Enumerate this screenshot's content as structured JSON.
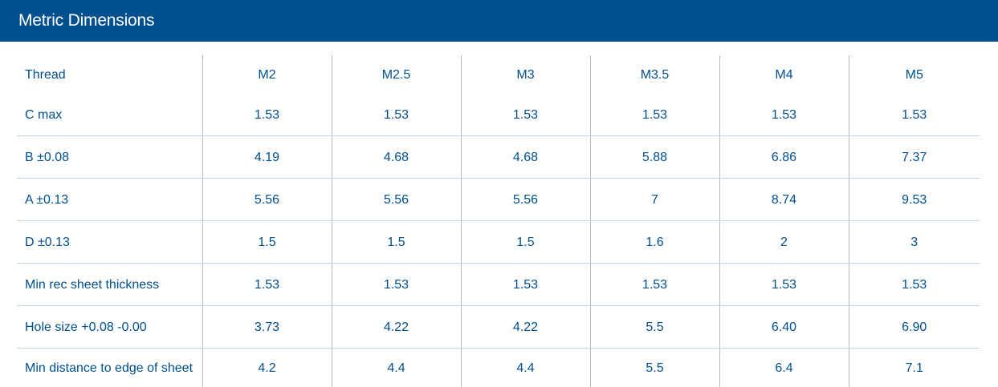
{
  "header": {
    "title": "Metric Dimensions"
  },
  "colors": {
    "header_background": "#004f8f",
    "text": "#004f8f",
    "row_divider": "#c3d3e4",
    "column_divider": "#b8b8b8"
  },
  "table": {
    "row_header_label": "Thread",
    "columns": [
      "M2",
      "M2.5",
      "M3",
      "M3.5",
      "M4",
      "M5"
    ],
    "rows": [
      {
        "label": "C max",
        "values": [
          "1.53",
          "1.53",
          "1.53",
          "1.53",
          "1.53",
          "1.53"
        ]
      },
      {
        "label": "B ±0.08",
        "values": [
          "4.19",
          "4.68",
          "4.68",
          "5.88",
          "6.86",
          "7.37"
        ]
      },
      {
        "label": "A ±0.13",
        "values": [
          "5.56",
          "5.56",
          "5.56",
          "7",
          "8.74",
          "9.53"
        ]
      },
      {
        "label": "D ±0.13",
        "values": [
          "1.5",
          "1.5",
          "1.5",
          "1.6",
          "2",
          "3"
        ]
      },
      {
        "label": "Min rec sheet thickness",
        "values": [
          "1.53",
          "1.53",
          "1.53",
          "1.53",
          "1.53",
          "1.53"
        ]
      },
      {
        "label": "Hole size +0.08 -0.00",
        "values": [
          "3.73",
          "4.22",
          "4.22",
          "5.5",
          "6.40",
          "6.90"
        ]
      },
      {
        "label": "Min distance to edge of sheet",
        "values": [
          "4.2",
          "4.4",
          "4.4",
          "5.5",
          "6.4",
          "7.1"
        ]
      }
    ]
  }
}
